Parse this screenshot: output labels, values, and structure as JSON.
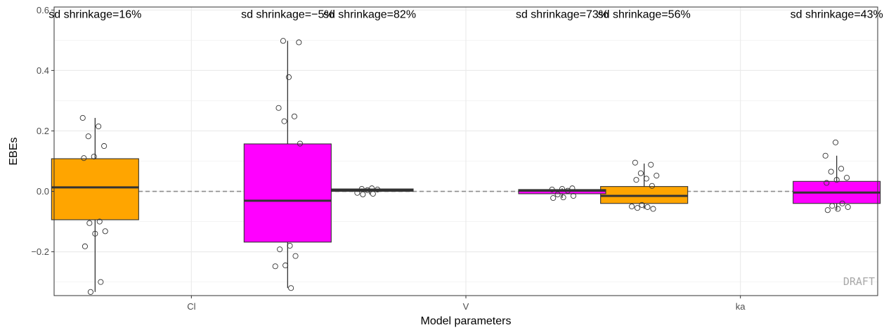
{
  "chart_data": {
    "type": "box",
    "xlabel": "Model parameters",
    "ylabel": "EBEs",
    "categories": [
      "Cl",
      "V",
      "ka"
    ],
    "ylim": [
      -0.345,
      0.61
    ],
    "y_ticks": [
      -0.2,
      0.0,
      0.2,
      0.4,
      0.6
    ],
    "y_tick_labels": [
      "−0.2",
      "0.0",
      "0.2",
      "0.4",
      "0.6"
    ],
    "grid": true,
    "reference_line": {
      "y": 0,
      "style": "dashed"
    },
    "watermark": "DRAFT",
    "series": [
      {
        "color": "#FFA500",
        "boxes": [
          {
            "category": "Cl",
            "q1": -0.094,
            "median": 0.013,
            "q3": 0.108,
            "whisker_low": -0.333,
            "whisker_high": 0.243,
            "points": [
              0.243,
              0.215,
              0.182,
              0.15,
              0.115,
              0.11,
              -0.1,
              -0.105,
              -0.132,
              -0.14,
              -0.182,
              -0.3,
              -0.333
            ],
            "annotation": "sd shrinkage=16%"
          },
          {
            "category": "V",
            "q1": 0.0,
            "median": 0.004,
            "q3": 0.008,
            "whisker_low": -0.01,
            "whisker_high": 0.01,
            "points": [
              0.01,
              0.008,
              0.006,
              0.004,
              -0.005,
              -0.008,
              -0.01
            ],
            "annotation": "sd shrinkage=82%"
          },
          {
            "category": "ka",
            "q1": -0.04,
            "median": -0.015,
            "q3": 0.016,
            "whisker_low": -0.058,
            "whisker_high": 0.092,
            "points": [
              0.095,
              0.088,
              0.06,
              0.052,
              0.042,
              0.038,
              0.018,
              -0.045,
              -0.05,
              -0.052,
              -0.055,
              -0.058
            ],
            "annotation": "sd shrinkage=56%"
          }
        ]
      },
      {
        "color": "#FF00FF",
        "boxes": [
          {
            "category": "Cl",
            "q1": -0.168,
            "median": -0.031,
            "q3": 0.157,
            "whisker_low": -0.32,
            "whisker_high": 0.498,
            "points": [
              0.498,
              0.493,
              0.378,
              0.276,
              0.248,
              0.232,
              0.158,
              -0.18,
              -0.192,
              -0.214,
              -0.245,
              -0.248,
              -0.32
            ],
            "annotation": "sd shrinkage=−5%"
          },
          {
            "category": "V",
            "q1": -0.008,
            "median": 0.002,
            "q3": 0.006,
            "whisker_low": -0.022,
            "whisker_high": 0.01,
            "points": [
              0.01,
              0.008,
              0.006,
              0.002,
              -0.01,
              -0.015,
              -0.02,
              -0.022
            ],
            "annotation": "sd shrinkage=73%"
          },
          {
            "category": "ka",
            "q1": -0.04,
            "median": -0.004,
            "q3": 0.033,
            "whisker_low": -0.062,
            "whisker_high": 0.118,
            "points": [
              0.162,
              0.118,
              0.075,
              0.065,
              0.045,
              0.038,
              0.028,
              -0.04,
              -0.048,
              -0.052,
              -0.058,
              -0.062
            ],
            "annotation": "sd shrinkage=43%"
          }
        ]
      }
    ]
  }
}
